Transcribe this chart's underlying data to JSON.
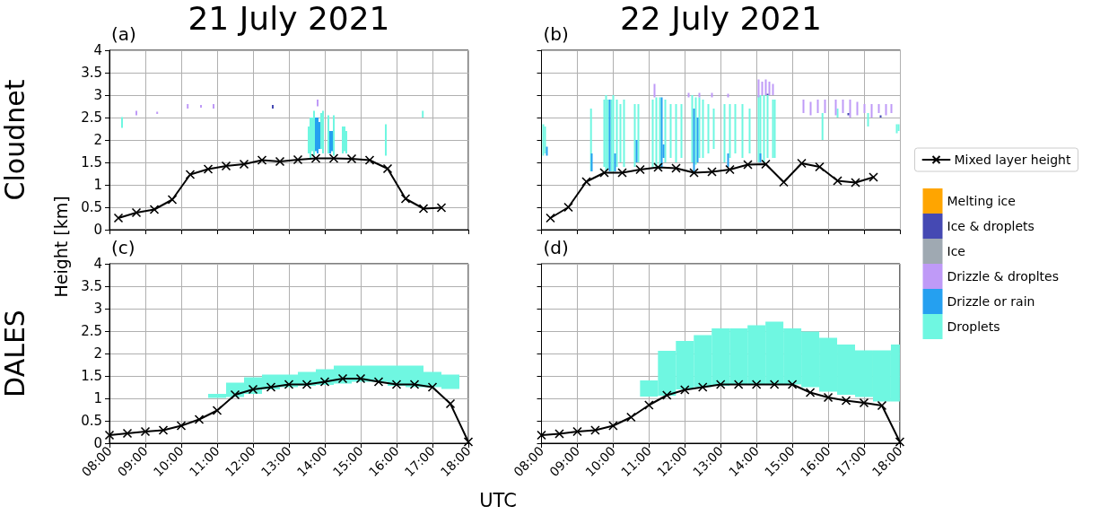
{
  "chart_data": [
    {
      "type": "line",
      "title": "21 July 2021",
      "ylabel": "Height [km]",
      "annotations": [
        "(a)",
        "Cloudnet"
      ],
      "xlim": [
        8,
        18
      ],
      "xticks": [
        8,
        9,
        10,
        11,
        12,
        13,
        14,
        15,
        16,
        17,
        18
      ],
      "ylim": [
        0,
        4
      ],
      "yticks": [
        0,
        0.5,
        1,
        1.5,
        2,
        2.5,
        3,
        3.5,
        4
      ],
      "grid": true,
      "legend": false,
      "tick_labels": "y",
      "marker": "cross",
      "line_style": "solid",
      "series": [
        {
          "type": "bar",
          "color": "#6ff7e1",
          "x": [
            8.35,
            13.55,
            13.6,
            13.65,
            13.7,
            13.9,
            13.95,
            14.1,
            14.25,
            14.5,
            14.55,
            14.6,
            15.7,
            16.73
          ],
          "base": [
            2.27,
            1.7,
            1.6,
            1.75,
            1.65,
            1.8,
            1.7,
            1.7,
            1.65,
            1.7,
            1.75,
            1.7,
            1.65,
            2.5
          ],
          "values": [
            0.24,
            0.6,
            0.9,
            0.75,
            1.0,
            0.8,
            0.95,
            0.85,
            0.9,
            0.6,
            0.55,
            0.5,
            0.7,
            0.15
          ]
        },
        {
          "type": "bar",
          "color": "#25a0f0",
          "x": [
            13.75,
            13.8,
            13.85,
            14.15,
            14.2
          ],
          "base": [
            1.75,
            1.7,
            1.8,
            1.7,
            1.75
          ],
          "values": [
            0.75,
            0.8,
            0.6,
            0.5,
            0.45
          ]
        },
        {
          "type": "bar",
          "color": "#bf9af7",
          "x": [
            8.75,
            9.33,
            10.18,
            10.55,
            10.9,
            13.8
          ],
          "base": [
            2.55,
            2.58,
            2.7,
            2.72,
            2.7,
            2.75
          ],
          "values": [
            0.1,
            0.05,
            0.1,
            0.06,
            0.1,
            0.15
          ]
        },
        {
          "type": "bar",
          "color": "#4549b3",
          "x": [
            12.55
          ],
          "base": [
            2.7
          ],
          "values": [
            0.08
          ]
        },
        {
          "color": "#000000",
          "x": [
            8.25,
            8.75,
            9.25,
            9.75,
            10.25,
            10.75,
            11.25,
            11.75,
            12.25,
            12.75,
            13.25,
            13.75,
            14.25,
            14.75,
            15.25,
            15.75,
            16.25,
            16.75,
            17.25
          ],
          "values": [
            0.26,
            0.38,
            0.45,
            0.67,
            1.23,
            1.35,
            1.42,
            1.46,
            1.55,
            1.52,
            1.56,
            1.59,
            1.59,
            1.58,
            1.55,
            1.36,
            0.69,
            0.47,
            0.49
          ]
        }
      ]
    },
    {
      "type": "line",
      "title": "22 July 2021",
      "annotations": [
        "(b)"
      ],
      "xlim": [
        8,
        18
      ],
      "xticks": [
        8,
        9,
        10,
        11,
        12,
        13,
        14,
        15,
        16,
        17,
        18
      ],
      "ylim": [
        0,
        4
      ],
      "yticks": [
        0,
        0.5,
        1,
        1.5,
        2,
        2.5,
        3,
        3.5,
        4
      ],
      "grid": true,
      "legend": "right",
      "tick_labels": false,
      "marker": "cross",
      "line_style": "solid",
      "series": [
        {
          "name": "Droplets",
          "type": "bar",
          "color": "#6ff7e1",
          "x": [
            8.05,
            8.1,
            9.38,
            9.75,
            9.8,
            9.85,
            9.95,
            10.0,
            10.1,
            10.2,
            10.3,
            10.6,
            10.7,
            11.1,
            11.2,
            11.3,
            11.45,
            11.6,
            11.75,
            11.9,
            12.2,
            12.3,
            12.4,
            12.5,
            12.65,
            12.8,
            13.1,
            13.25,
            13.4,
            13.6,
            13.8,
            14.05,
            14.1,
            14.2,
            14.3,
            14.45,
            14.5,
            15.83,
            16.25,
            17.1,
            17.9,
            17.95
          ],
          "base": [
            1.65,
            1.7,
            1.3,
            1.4,
            1.3,
            1.35,
            1.3,
            1.3,
            1.4,
            1.5,
            1.4,
            1.4,
            1.5,
            1.4,
            1.4,
            1.35,
            1.5,
            1.6,
            1.5,
            1.6,
            1.5,
            1.45,
            1.6,
            1.6,
            1.7,
            1.8,
            1.5,
            1.6,
            1.7,
            1.6,
            1.7,
            1.5,
            1.55,
            1.5,
            1.6,
            1.6,
            1.6,
            2.0,
            2.5,
            2.3,
            2.15,
            2.2
          ],
          "values": [
            0.7,
            0.6,
            1.4,
            1.5,
            1.7,
            1.55,
            1.6,
            1.7,
            1.5,
            1.3,
            1.5,
            1.4,
            1.3,
            1.5,
            1.55,
            1.6,
            1.4,
            1.2,
            1.3,
            1.2,
            1.5,
            1.5,
            1.35,
            1.3,
            1.1,
            0.9,
            1.3,
            1.2,
            1.1,
            1.2,
            1.0,
            1.5,
            1.45,
            1.5,
            1.4,
            1.3,
            1.3,
            0.6,
            0.2,
            0.3,
            0.2,
            0.15
          ]
        },
        {
          "name": "Drizzle or rain",
          "type": "bar",
          "color": "#25a0f0",
          "x": [
            8.15,
            9.4,
            9.9,
            10.05,
            10.65,
            11.35,
            11.4,
            12.25,
            12.35,
            13.2,
            14.1
          ],
          "base": [
            1.65,
            1.3,
            1.3,
            1.3,
            1.5,
            1.4,
            1.6,
            1.3,
            1.5,
            1.4,
            1.5
          ],
          "values": [
            0.2,
            0.4,
            1.6,
            0.4,
            0.5,
            1.55,
            0.3,
            1.4,
            1.0,
            0.3,
            0.2
          ]
        },
        {
          "name": "Drizzle & dropltes",
          "type": "bar",
          "color": "#bf9af7",
          "x": [
            11.15,
            12.1,
            12.4,
            12.75,
            13.2,
            14.05,
            14.15,
            14.25,
            14.35,
            14.45,
            15.3,
            15.5,
            15.7,
            15.9,
            16.2,
            16.4,
            16.6,
            16.8,
            17.0,
            17.2,
            17.4,
            17.6,
            17.75
          ],
          "base": [
            2.95,
            2.95,
            2.95,
            2.95,
            2.95,
            2.95,
            3.0,
            3.0,
            3.0,
            3.0,
            2.6,
            2.55,
            2.6,
            2.6,
            2.55,
            2.6,
            2.5,
            2.55,
            2.6,
            2.5,
            2.6,
            2.55,
            2.6
          ],
          "values": [
            0.3,
            0.1,
            0.1,
            0.1,
            0.08,
            0.4,
            0.3,
            0.35,
            0.3,
            0.25,
            0.3,
            0.3,
            0.3,
            0.3,
            0.35,
            0.3,
            0.4,
            0.3,
            0.2,
            0.3,
            0.2,
            0.25,
            0.2
          ]
        },
        {
          "name": "Ice",
          "type": "bar",
          "color": "#9fa9b2"
        },
        {
          "name": "Ice & droplets",
          "type": "bar",
          "color": "#4549b3",
          "x": [
            14.3,
            16.55,
            17.45
          ],
          "base": [
            3.0,
            2.55,
            2.5
          ],
          "values": [
            0.03,
            0.05,
            0.05
          ]
        },
        {
          "name": "Melting ice",
          "type": "bar",
          "color": "#ffa500"
        },
        {
          "name": "Mixed layer height",
          "color": "#000000",
          "x": [
            8.25,
            8.75,
            9.25,
            9.75,
            10.25,
            10.75,
            11.25,
            11.75,
            12.25,
            12.75,
            13.25,
            13.75,
            14.25,
            14.75,
            15.25,
            15.75,
            16.25,
            16.75,
            17.25
          ],
          "values": [
            0.26,
            0.5,
            1.07,
            1.27,
            1.27,
            1.34,
            1.39,
            1.37,
            1.27,
            1.29,
            1.34,
            1.45,
            1.46,
            1.06,
            1.48,
            1.4,
            1.09,
            1.05,
            1.17
          ]
        }
      ]
    },
    {
      "type": "line",
      "xlabel": "UTC",
      "annotations": [
        "(c)",
        "DALES"
      ],
      "xlim": [
        8,
        18
      ],
      "xticks": [
        {
          "value": 8,
          "label": "08:00"
        },
        {
          "value": 9,
          "label": "09:00"
        },
        {
          "value": 10,
          "label": "10:00"
        },
        {
          "value": 11,
          "label": "11:00"
        },
        {
          "value": 12,
          "label": "12:00"
        },
        {
          "value": 13,
          "label": "13:00"
        },
        {
          "value": 14,
          "label": "14:00"
        },
        {
          "value": 15,
          "label": "15:00"
        },
        {
          "value": 16,
          "label": "16:00"
        },
        {
          "value": 17,
          "label": "17:00"
        },
        {
          "value": 18,
          "label": "18:00"
        }
      ],
      "ylim": [
        0,
        4
      ],
      "yticks": [
        0,
        0.5,
        1,
        1.5,
        2,
        2.5,
        3,
        3.5,
        4
      ],
      "grid": true,
      "legend": false,
      "marker": "cross",
      "line_style": "solid",
      "series": [
        {
          "type": "bar",
          "color": "#6ff7e1",
          "x": [
            11.0,
            11.5,
            12.0,
            12.5,
            13.0,
            13.5,
            14.0,
            14.5,
            15.0,
            15.5,
            16.0,
            16.5,
            17.0,
            17.5
          ],
          "base": [
            1.01,
            1.03,
            1.1,
            1.2,
            1.25,
            1.28,
            1.3,
            1.33,
            1.37,
            1.37,
            1.28,
            1.25,
            1.25,
            1.21
          ],
          "values": [
            0.09,
            0.32,
            0.37,
            0.33,
            0.28,
            0.31,
            0.35,
            0.4,
            0.36,
            0.36,
            0.45,
            0.48,
            0.34,
            0.32
          ]
        },
        {
          "color": "#000000",
          "x": [
            8.0,
            8.5,
            9.0,
            9.5,
            10.0,
            10.5,
            11.0,
            11.5,
            12.0,
            12.5,
            13.0,
            13.5,
            14.0,
            14.5,
            15.0,
            15.5,
            16.0,
            16.5,
            17.0,
            17.5,
            18.0
          ],
          "values": [
            0.18,
            0.22,
            0.26,
            0.29,
            0.39,
            0.53,
            0.73,
            1.08,
            1.2,
            1.25,
            1.31,
            1.31,
            1.37,
            1.44,
            1.44,
            1.37,
            1.31,
            1.31,
            1.25,
            0.88,
            0.03
          ]
        }
      ]
    },
    {
      "type": "line",
      "annotations": [
        "(d)"
      ],
      "xlim": [
        8,
        18
      ],
      "xticks": [
        {
          "value": 8,
          "label": "08:00"
        },
        {
          "value": 9,
          "label": "09:00"
        },
        {
          "value": 10,
          "label": "10:00"
        },
        {
          "value": 11,
          "label": "11:00"
        },
        {
          "value": 12,
          "label": "12:00"
        },
        {
          "value": 13,
          "label": "13:00"
        },
        {
          "value": 14,
          "label": "14:00"
        },
        {
          "value": 15,
          "label": "15:00"
        },
        {
          "value": 16,
          "label": "16:00"
        },
        {
          "value": 17,
          "label": "17:00"
        },
        {
          "value": 18,
          "label": "18:00"
        }
      ],
      "ylim": [
        0,
        4
      ],
      "yticks": [
        0,
        0.5,
        1,
        1.5,
        2,
        2.5,
        3,
        3.5,
        4
      ],
      "grid": true,
      "legend": false,
      "tick_labels": "x",
      "marker": "cross",
      "line_style": "solid",
      "series": [
        {
          "type": "bar",
          "color": "#6ff7e1",
          "x": [
            11.0,
            11.5,
            12.0,
            12.5,
            13.0,
            13.5,
            14.0,
            14.5,
            15.0,
            15.5,
            16.0,
            16.5,
            17.0,
            17.5,
            17.875
          ],
          "base": [
            1.04,
            1.06,
            1.2,
            1.25,
            1.28,
            1.31,
            1.31,
            1.31,
            1.31,
            1.25,
            1.15,
            1.08,
            1.03,
            0.93,
            0.93
          ],
          "values": [
            0.36,
            1.0,
            1.08,
            1.16,
            1.28,
            1.25,
            1.32,
            1.4,
            1.25,
            1.24,
            1.2,
            1.12,
            1.04,
            1.14,
            1.27
          ]
        },
        {
          "color": "#000000",
          "x": [
            8.0,
            8.5,
            9.0,
            9.5,
            10.0,
            10.5,
            11.0,
            11.5,
            12.0,
            12.5,
            13.0,
            13.5,
            14.0,
            14.5,
            15.0,
            15.5,
            16.0,
            16.5,
            17.0,
            17.5,
            18.0
          ],
          "values": [
            0.18,
            0.21,
            0.26,
            0.29,
            0.39,
            0.58,
            0.85,
            1.07,
            1.19,
            1.25,
            1.31,
            1.31,
            1.31,
            1.31,
            1.31,
            1.13,
            1.02,
            0.95,
            0.9,
            0.84,
            0.03
          ]
        }
      ]
    }
  ]
}
